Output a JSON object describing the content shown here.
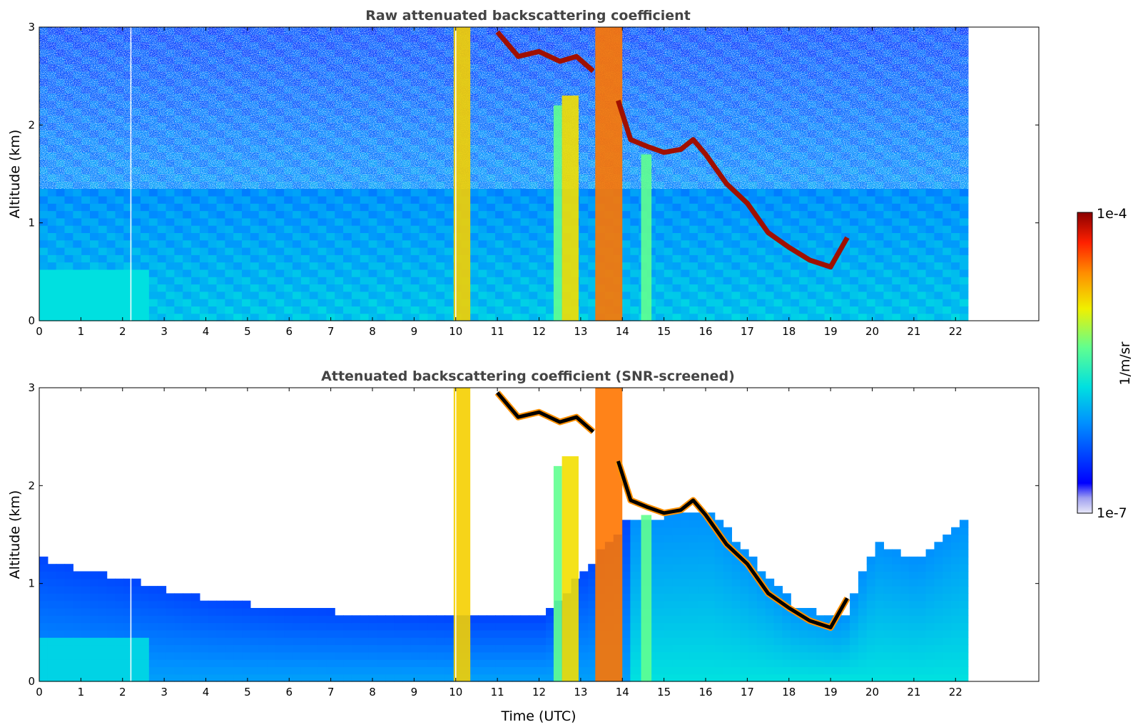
{
  "chart_data": [
    {
      "type": "heatmap",
      "title": "Raw attenuated backscattering coefficient",
      "xlabel": "",
      "ylabel": "Altitude (km)",
      "xlim": [
        0,
        24
      ],
      "ylim": [
        0,
        3
      ],
      "x_ticks": [
        "0",
        "1",
        "2",
        "3",
        "4",
        "5",
        "6",
        "7",
        "8",
        "9",
        "10",
        "11",
        "12",
        "13",
        "14",
        "15",
        "16",
        "17",
        "18",
        "19",
        "20",
        "21",
        "22"
      ],
      "y_ticks": [
        "0",
        "1",
        "2",
        "3"
      ],
      "data_extent_hours": [
        0,
        22.3
      ],
      "cloud_layer": [
        {
          "t": 13.9,
          "alt": 2.25
        },
        {
          "t": 14.2,
          "alt": 1.85
        },
        {
          "t": 14.6,
          "alt": 1.78
        },
        {
          "t": 15.0,
          "alt": 1.72
        },
        {
          "t": 15.4,
          "alt": 1.75
        },
        {
          "t": 15.7,
          "alt": 1.85
        },
        {
          "t": 16.0,
          "alt": 1.7
        },
        {
          "t": 16.5,
          "alt": 1.4
        },
        {
          "t": 17.0,
          "alt": 1.2
        },
        {
          "t": 17.5,
          "alt": 0.9
        },
        {
          "t": 18.0,
          "alt": 0.75
        },
        {
          "t": 18.5,
          "alt": 0.62
        },
        {
          "t": 19.0,
          "alt": 0.55
        },
        {
          "t": 19.4,
          "alt": 0.85
        }
      ],
      "upper_layer": [
        {
          "t": 11.0,
          "alt": 2.95
        },
        {
          "t": 11.5,
          "alt": 2.7
        },
        {
          "t": 12.0,
          "alt": 2.75
        },
        {
          "t": 12.5,
          "alt": 2.65
        },
        {
          "t": 12.9,
          "alt": 2.7
        },
        {
          "t": 13.3,
          "alt": 2.55
        }
      ],
      "plumes": [
        {
          "t0": 9.95,
          "t1": 10.35,
          "top": 3.0,
          "level": 0.72
        },
        {
          "t0": 12.35,
          "t1": 12.55,
          "top": 2.2,
          "level": 0.55
        },
        {
          "t0": 12.55,
          "t1": 12.95,
          "top": 2.3,
          "level": 0.7
        },
        {
          "t0": 13.35,
          "t1": 14.0,
          "top": 3.0,
          "level": 0.82
        },
        {
          "t0": 14.45,
          "t1": 14.7,
          "top": 1.7,
          "level": 0.55
        }
      ]
    },
    {
      "type": "heatmap",
      "title": "Attenuated backscattering coefficient (SNR-screened)",
      "xlabel": "Time (UTC)",
      "ylabel": "Altitude (km)",
      "xlim": [
        0,
        24
      ],
      "ylim": [
        0,
        3
      ],
      "x_ticks": [
        "0",
        "1",
        "2",
        "3",
        "4",
        "5",
        "6",
        "7",
        "8",
        "9",
        "10",
        "11",
        "12",
        "13",
        "14",
        "15",
        "16",
        "17",
        "18",
        "19",
        "20",
        "21",
        "22"
      ],
      "y_ticks": [
        "0",
        "1",
        "2",
        "3"
      ],
      "data_extent_hours": [
        0,
        22.3
      ],
      "screen_boundary": [
        {
          "t": 0,
          "alt": 1.2
        },
        {
          "t": 2,
          "alt": 1.0
        },
        {
          "t": 4,
          "alt": 0.8
        },
        {
          "t": 6,
          "alt": 0.7
        },
        {
          "t": 8,
          "alt": 0.65
        },
        {
          "t": 10,
          "alt": 0.6
        },
        {
          "t": 12,
          "alt": 0.6
        },
        {
          "t": 14,
          "alt": 1.6
        },
        {
          "t": 16,
          "alt": 1.7
        },
        {
          "t": 18,
          "alt": 0.75
        },
        {
          "t": 19.2,
          "alt": 0.6
        },
        {
          "t": 20,
          "alt": 1.4
        },
        {
          "t": 21,
          "alt": 1.2
        },
        {
          "t": 22.3,
          "alt": 1.7
        }
      ]
    }
  ],
  "colorbar": {
    "label": "1/m/sr",
    "min_label": "1e-7",
    "max_label": "1e-4",
    "colormap": "jet"
  }
}
